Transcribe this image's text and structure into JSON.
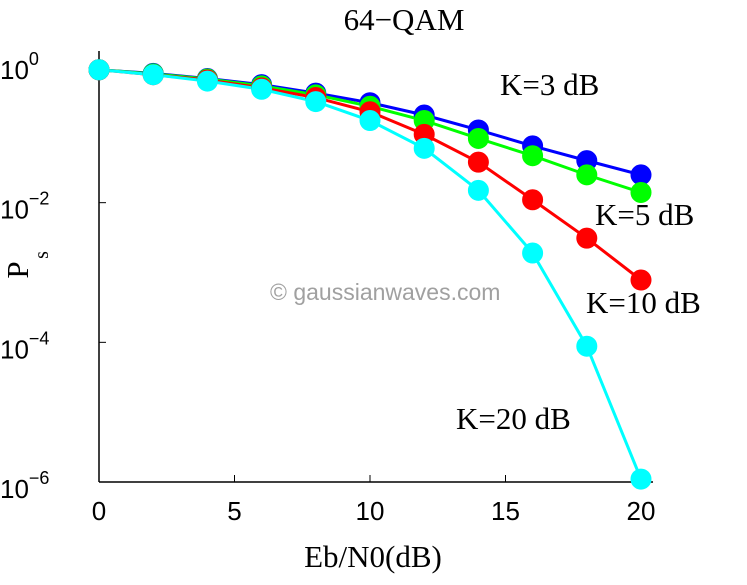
{
  "chart_data": {
    "type": "line",
    "title": "64−QAM",
    "xlabel": "Eb/N0(dB)",
    "ylabel": {
      "base": "P",
      "sub": "s"
    },
    "x": [
      0,
      2,
      4,
      6,
      8,
      10,
      12,
      14,
      16,
      18,
      20
    ],
    "xlim": [
      0,
      20
    ],
    "ylim": [
      1e-06,
      1
    ],
    "yscale": "log",
    "grid": false,
    "xticks": [
      {
        "value": 0,
        "label": "0"
      },
      {
        "value": 5,
        "label": "5"
      },
      {
        "value": 10,
        "label": "10"
      },
      {
        "value": 15,
        "label": "15"
      },
      {
        "value": 20,
        "label": "20"
      }
    ],
    "yticks": [
      {
        "value": 1,
        "base": "10",
        "exp": "0"
      },
      {
        "value": 0.01,
        "base": "10",
        "exp": "−2"
      },
      {
        "value": 0.0001,
        "base": "10",
        "exp": "−4"
      },
      {
        "value": 1e-06,
        "base": "10",
        "exp": "−6"
      }
    ],
    "series": [
      {
        "name": "K=3 dB",
        "color": "#0000ff",
        "values": [
          0.8,
          0.71,
          0.6,
          0.49,
          0.37,
          0.27,
          0.18,
          0.11,
          0.065,
          0.04,
          0.025
        ]
      },
      {
        "name": "K=5 dB",
        "color": "#00ff00",
        "values": [
          0.8,
          0.7,
          0.59,
          0.47,
          0.35,
          0.24,
          0.15,
          0.083,
          0.047,
          0.025,
          0.014
        ]
      },
      {
        "name": "K=10 dB",
        "color": "#ff0000",
        "values": [
          0.8,
          0.68,
          0.57,
          0.44,
          0.32,
          0.2,
          0.095,
          0.038,
          0.011,
          0.0031,
          0.00078
        ]
      },
      {
        "name": "K=20 dB",
        "color": "#00ffff",
        "values": [
          0.8,
          0.68,
          0.55,
          0.42,
          0.28,
          0.15,
          0.06,
          0.015,
          0.0019,
          8.8e-05,
          1.1e-06
        ]
      }
    ],
    "annotations": [
      "K=3 dB",
      "K=5 dB",
      "K=10 dB",
      "K=20 dB"
    ],
    "watermark": "© gaussianwaves.com"
  }
}
